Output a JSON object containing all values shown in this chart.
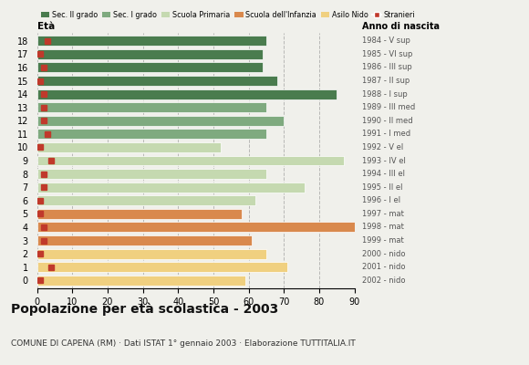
{
  "ages": [
    18,
    17,
    16,
    15,
    14,
    13,
    12,
    11,
    10,
    9,
    8,
    7,
    6,
    5,
    4,
    3,
    2,
    1,
    0
  ],
  "bar_values": [
    65,
    64,
    64,
    68,
    85,
    65,
    70,
    65,
    52,
    87,
    65,
    76,
    62,
    58,
    90,
    61,
    65,
    71,
    59
  ],
  "bar_colors": [
    "#4a7c4e",
    "#4a7c4e",
    "#4a7c4e",
    "#4a7c4e",
    "#4a7c4e",
    "#7faa7f",
    "#7faa7f",
    "#7faa7f",
    "#c5d9b0",
    "#c5d9b0",
    "#c5d9b0",
    "#c5d9b0",
    "#c5d9b0",
    "#d9894d",
    "#d9894d",
    "#d9894d",
    "#f0d080",
    "#f0d080",
    "#f0d080"
  ],
  "stranieri_values": [
    3,
    1,
    2,
    1,
    2,
    2,
    2,
    3,
    1,
    4,
    2,
    2,
    1,
    1,
    2,
    2,
    1,
    4,
    1
  ],
  "right_labels": [
    "1984 - V sup",
    "1985 - VI sup",
    "1986 - III sup",
    "1987 - II sup",
    "1988 - I sup",
    "1989 - III med",
    "1990 - II med",
    "1991 - I med",
    "1992 - V el",
    "1993 - IV el",
    "1994 - III el",
    "1995 - II el",
    "1996 - I el",
    "1997 - mat",
    "1998 - mat",
    "1999 - mat",
    "2000 - nido",
    "2001 - nido",
    "2002 - nido"
  ],
  "legend_labels": [
    "Sec. II grado",
    "Sec. I grado",
    "Scuola Primaria",
    "Scuola dell'Infanzia",
    "Asilo Nido",
    "Stranieri"
  ],
  "legend_colors": [
    "#4a7c4e",
    "#7faa7f",
    "#c5d9b0",
    "#d9894d",
    "#f0d080",
    "#c0392b"
  ],
  "title": "Popolazione per età scolastica - 2003",
  "subtitle": "COMUNE DI CAPENA (RM) · Dati ISTAT 1° gennaio 2003 · Elaborazione TUTTITALIA.IT",
  "xlabel_eta": "Età",
  "xlabel_anno": "Anno di nascita",
  "xlim": [
    0,
    90
  ],
  "background_color": "#f0f0eb",
  "bar_height": 0.75,
  "stranieri_color": "#c0392b",
  "stranieri_size": 4
}
